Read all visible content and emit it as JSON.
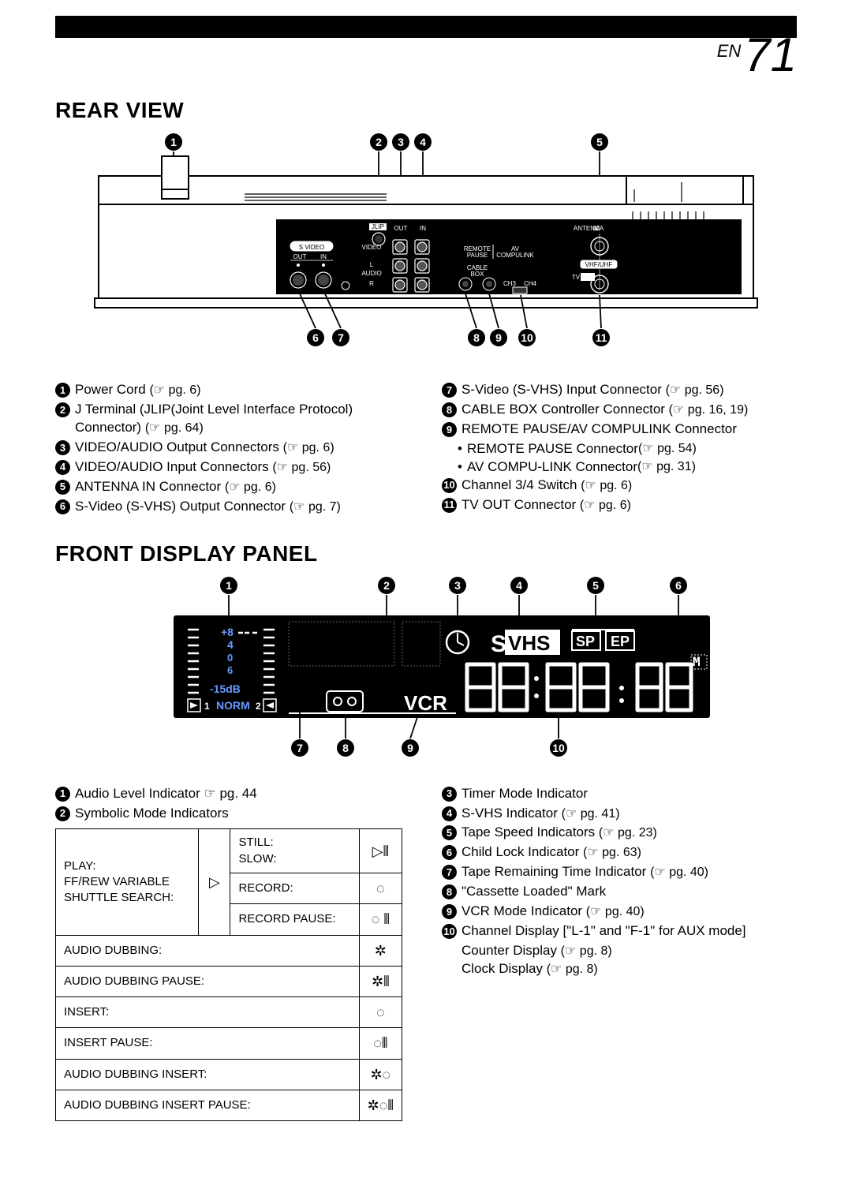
{
  "page": {
    "en_label": "EN",
    "number": "71"
  },
  "sections": {
    "rear": {
      "title": "REAR VIEW",
      "callouts_top": [
        "1",
        "2",
        "3",
        "4",
        "5"
      ],
      "callouts_bottom": [
        "6",
        "7",
        "8",
        "9",
        "10",
        "11"
      ],
      "panel_labels": {
        "jlip": "JLIP",
        "out": "OUT",
        "in": "IN",
        "svideo": "S VIDEO",
        "video": "VIDEO",
        "audio": "AUDIO",
        "l": "L",
        "r": "R",
        "remote_pause": "REMOTE\nPAUSE",
        "av_compulink": "AV\nCOMPULINK",
        "cable_box": "CABLE\nBOX",
        "ch3": "CH3",
        "ch4": "CH4",
        "antenna": "ANTENNA",
        "vhf_uhf": "VHF/UHF",
        "tv": "TV",
        "ant_in": "IN"
      },
      "items_left": [
        {
          "n": "1",
          "text": "Power Cord",
          "pg": "pg. 6"
        },
        {
          "n": "2",
          "text": "J Terminal (JLIP(Joint Level Interface Protocol) Connector)",
          "pg": "pg. 64"
        },
        {
          "n": "3",
          "text": "VIDEO/AUDIO Output Connectors",
          "pg": "pg. 6"
        },
        {
          "n": "4",
          "text": "VIDEO/AUDIO Input Connectors",
          "pg": "pg. 56"
        },
        {
          "n": "5",
          "text": "ANTENNA IN Connector",
          "pg": "pg. 6"
        },
        {
          "n": "6",
          "text": "S-Video (S-VHS) Output Connector",
          "pg": "pg. 7"
        }
      ],
      "items_right": [
        {
          "n": "7",
          "text": "S-Video (S-VHS) Input Connector",
          "pg": "pg. 56"
        },
        {
          "n": "8",
          "text": "CABLE BOX Controller Connector",
          "pg": "pg. 16, 19"
        },
        {
          "n": "9",
          "text": "REMOTE PAUSE/AV COMPULINK Connector",
          "sub": [
            {
              "text": "REMOTE PAUSE Connector",
              "pg": "pg. 54"
            },
            {
              "text": "AV COMPU-LINK Connector",
              "pg": "pg. 31"
            }
          ]
        },
        {
          "n": "10",
          "text": "Channel 3/4 Switch",
          "pg": "pg. 6"
        },
        {
          "n": "11",
          "text": "TV OUT Connector",
          "pg": "pg. 6"
        }
      ]
    },
    "front": {
      "title": "FRONT DISPLAY PANEL",
      "callouts_top": [
        "1",
        "2",
        "3",
        "4",
        "5",
        "6"
      ],
      "callouts_bottom": [
        "7",
        "8",
        "9",
        "10"
      ],
      "display": {
        "levels": [
          "+8",
          "4",
          "0",
          "6",
          "-15dB"
        ],
        "mode1": "1",
        "norm": "NORM",
        "mode2": "2",
        "vcr": "VCR",
        "svhs": "S",
        "vhs": "VHS",
        "sp": "SP",
        "ep": "EP",
        "time": "88:88 : 88",
        "m": "M"
      },
      "items_left": [
        {
          "n": "1",
          "text": "Audio Level Indicator",
          "pg_prefix": "☞ pg. 44"
        },
        {
          "n": "2",
          "text": "Symbolic Mode Indicators"
        }
      ],
      "items_right": [
        {
          "n": "3",
          "text": "Timer Mode Indicator"
        },
        {
          "n": "4",
          "text": "S-VHS Indicator",
          "pg": "pg. 41"
        },
        {
          "n": "5",
          "text": "Tape Speed Indicators",
          "pg": "pg. 23"
        },
        {
          "n": "6",
          "text": "Child Lock Indicator",
          "pg": "pg. 63"
        },
        {
          "n": "7",
          "text": "Tape Remaining Time Indicator",
          "pg": "pg. 40"
        },
        {
          "n": "8",
          "text": "\"Cassette Loaded\" Mark"
        },
        {
          "n": "9",
          "text": "VCR Mode Indicator",
          "pg": "pg. 40"
        },
        {
          "n": "10",
          "text": "Channel Display [\"L-1\" and \"F-1\" for  AUX mode]",
          "extra": [
            {
              "text": "Counter Display",
              "pg": "pg. 8"
            },
            {
              "text": "Clock Display",
              "pg": "pg. 8"
            }
          ]
        }
      ],
      "mode_table": {
        "play_cell": "PLAY:\nFF/REW VARIABLE\nSHUTTLE SEARCH:",
        "play_icon": "▷",
        "rows_split": [
          {
            "label": "STILL:\nSLOW:",
            "icon": "▷⫴"
          },
          {
            "label": "RECORD:",
            "icon": "◌"
          },
          {
            "label": "RECORD PAUSE:",
            "icon": "◌ ⫴"
          }
        ],
        "rows_full": [
          {
            "label": "AUDIO DUBBING:",
            "icon": "✲"
          },
          {
            "label": "AUDIO DUBBING PAUSE:",
            "icon": "✲⫴"
          },
          {
            "label": "INSERT:",
            "icon": "◌"
          },
          {
            "label": "INSERT PAUSE:",
            "icon": "◌⫴"
          },
          {
            "label": "AUDIO DUBBING INSERT:",
            "icon": "✲◌"
          },
          {
            "label": "AUDIO DUBBING INSERT PAUSE:",
            "icon": "✲◌⫴"
          }
        ]
      }
    }
  }
}
